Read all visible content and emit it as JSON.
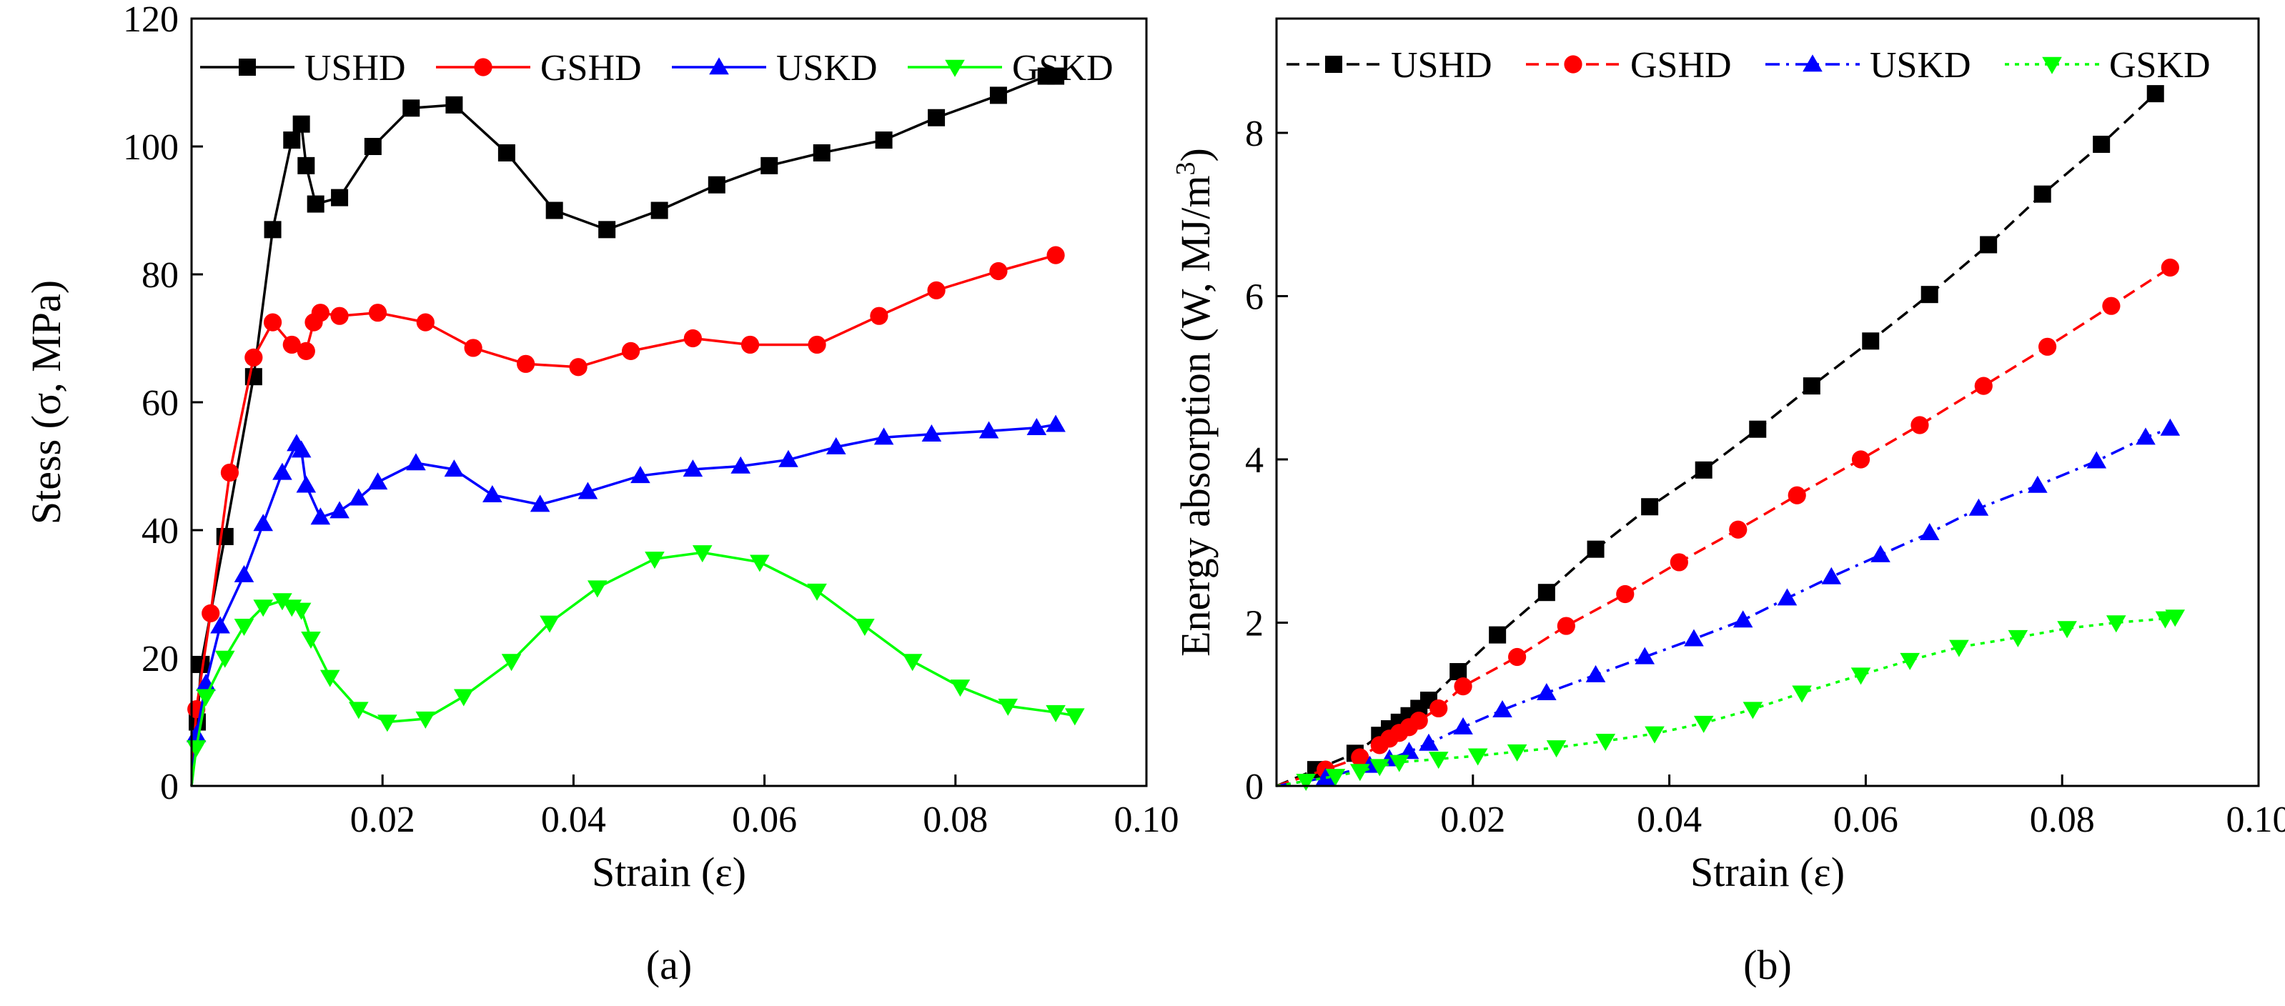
{
  "chart_data": [
    {
      "type": "line",
      "panel_label": "(a)",
      "xlabel": "Strain (ε)",
      "ylabel": "Stess (σ, MPa)",
      "xlim": [
        0,
        0.1
      ],
      "ylim": [
        0,
        120
      ],
      "xticks": [
        0.02,
        0.04,
        0.06,
        0.08,
        0.1
      ],
      "xtick_labels": [
        "0.02",
        "0.04",
        "0.06",
        "0.08",
        "0.10"
      ],
      "yticks": [
        0,
        20,
        40,
        60,
        80,
        100,
        120
      ],
      "ytick_labels": [
        "0",
        "20",
        "40",
        "60",
        "80",
        "100",
        "120"
      ],
      "legend_position": "top",
      "series": [
        {
          "name": "USHD",
          "color": "#000000",
          "marker": "square",
          "line": "solid",
          "x": [
            0,
            0.0006,
            0.001,
            0.0035,
            0.0065,
            0.0085,
            0.0105,
            0.0115,
            0.012,
            0.013,
            0.0155,
            0.019,
            0.023,
            0.0275,
            0.033,
            0.038,
            0.0435,
            0.049,
            0.055,
            0.0605,
            0.066,
            0.0725,
            0.078,
            0.0845,
            0.0895,
            0.0905
          ],
          "y": [
            0,
            10,
            19,
            39,
            64,
            87,
            101,
            103.5,
            97,
            91,
            92,
            100,
            106,
            106.5,
            99,
            90,
            87,
            90,
            94,
            97,
            99,
            101,
            104.5,
            108,
            111,
            111
          ]
        },
        {
          "name": "GSHD",
          "color": "#ff0000",
          "marker": "circle",
          "line": "solid",
          "x": [
            0,
            0.0005,
            0.002,
            0.004,
            0.0065,
            0.0085,
            0.0105,
            0.012,
            0.0128,
            0.0135,
            0.0155,
            0.0195,
            0.0245,
            0.0295,
            0.035,
            0.0405,
            0.046,
            0.0525,
            0.0585,
            0.0655,
            0.072,
            0.078,
            0.0845,
            0.0905
          ],
          "y": [
            0,
            12,
            27,
            49,
            67,
            72.5,
            69,
            68,
            72.5,
            74,
            73.5,
            74,
            72.5,
            68.5,
            66,
            65.5,
            68,
            70,
            69,
            69,
            73.5,
            77.5,
            80.5,
            83
          ]
        },
        {
          "name": "USKD",
          "color": "#0000ff",
          "marker": "triangle-up",
          "line": "solid",
          "x": [
            0,
            0.0005,
            0.0015,
            0.003,
            0.0055,
            0.0075,
            0.0095,
            0.011,
            0.0115,
            0.012,
            0.0135,
            0.0155,
            0.0175,
            0.0195,
            0.0235,
            0.0275,
            0.0315,
            0.0365,
            0.0415,
            0.047,
            0.0525,
            0.0575,
            0.0625,
            0.0675,
            0.0725,
            0.0775,
            0.0835,
            0.0885,
            0.0905
          ],
          "y": [
            0,
            8,
            16,
            25,
            33,
            41,
            49,
            53.5,
            52.5,
            47,
            42,
            43,
            45,
            47.5,
            50.5,
            49.5,
            45.5,
            44,
            46,
            48.5,
            49.5,
            50,
            51,
            53,
            54.5,
            55,
            55.5,
            56,
            56.5
          ]
        },
        {
          "name": "GSKD",
          "color": "#00ff00",
          "marker": "triangle-down",
          "line": "solid",
          "x": [
            0,
            0.0005,
            0.0015,
            0.0035,
            0.0055,
            0.0075,
            0.0095,
            0.0105,
            0.0115,
            0.0125,
            0.0145,
            0.0175,
            0.0205,
            0.0245,
            0.0285,
            0.0335,
            0.0375,
            0.0425,
            0.0485,
            0.0535,
            0.0595,
            0.0655,
            0.0705,
            0.0755,
            0.0805,
            0.0855,
            0.0905,
            0.0925
          ],
          "y": [
            0,
            6,
            14,
            20,
            25,
            28,
            29,
            28,
            27.5,
            23,
            17,
            12,
            10,
            10.5,
            14,
            19.5,
            25.5,
            31,
            35.5,
            36.5,
            35,
            30.5,
            25,
            19.5,
            15.5,
            12.5,
            11.5,
            11
          ]
        }
      ]
    },
    {
      "type": "line",
      "panel_label": "(b)",
      "xlabel": "Strain (ε)",
      "ylabel": "Energy absorption (W, MJ/m",
      "ylabel_sup": "3",
      "ylabel_tail": ")",
      "xlim": [
        0,
        0.1
      ],
      "ylim": [
        0,
        9.4
      ],
      "xticks": [
        0.02,
        0.04,
        0.06,
        0.08,
        0.1
      ],
      "xtick_labels": [
        "0.02",
        "0.04",
        "0.06",
        "0.08",
        "0.10"
      ],
      "yticks": [
        0,
        2,
        4,
        6,
        8
      ],
      "ytick_labels": [
        "0",
        "2",
        "4",
        "6",
        "8"
      ],
      "legend_position": "top",
      "series": [
        {
          "name": "USHD",
          "color": "#000000",
          "marker": "square",
          "line": "dashed",
          "x": [
            0,
            0.004,
            0.008,
            0.0105,
            0.0115,
            0.0125,
            0.0135,
            0.0145,
            0.0155,
            0.0185,
            0.0225,
            0.0275,
            0.0325,
            0.038,
            0.0435,
            0.049,
            0.0545,
            0.0605,
            0.0665,
            0.0725,
            0.078,
            0.084,
            0.0895
          ],
          "y": [
            0,
            0.2,
            0.4,
            0.62,
            0.7,
            0.78,
            0.86,
            0.95,
            1.05,
            1.4,
            1.85,
            2.37,
            2.9,
            3.42,
            3.87,
            4.37,
            4.9,
            5.45,
            6.02,
            6.63,
            7.25,
            7.86,
            8.48
          ]
        },
        {
          "name": "GSHD",
          "color": "#ff0000",
          "marker": "circle",
          "line": "dashed",
          "x": [
            0,
            0.005,
            0.0085,
            0.0105,
            0.0115,
            0.0125,
            0.0135,
            0.0145,
            0.0165,
            0.019,
            0.0245,
            0.0295,
            0.0355,
            0.041,
            0.047,
            0.053,
            0.0595,
            0.0655,
            0.072,
            0.0785,
            0.085,
            0.091
          ],
          "y": [
            0,
            0.2,
            0.35,
            0.5,
            0.58,
            0.65,
            0.72,
            0.8,
            0.95,
            1.22,
            1.58,
            1.96,
            2.35,
            2.74,
            3.14,
            3.56,
            4.0,
            4.42,
            4.9,
            5.38,
            5.88,
            6.35
          ]
        },
        {
          "name": "USKD",
          "color": "#0000ff",
          "marker": "triangle-up",
          "line": "dashdot",
          "x": [
            0,
            0.005,
            0.0095,
            0.0115,
            0.0135,
            0.0155,
            0.019,
            0.023,
            0.0275,
            0.0325,
            0.0375,
            0.0425,
            0.0475,
            0.052,
            0.0565,
            0.0615,
            0.0665,
            0.0715,
            0.0775,
            0.0835,
            0.0885,
            0.091
          ],
          "y": [
            0,
            0.1,
            0.25,
            0.33,
            0.42,
            0.52,
            0.72,
            0.93,
            1.14,
            1.36,
            1.58,
            1.8,
            2.03,
            2.3,
            2.56,
            2.83,
            3.1,
            3.4,
            3.68,
            3.98,
            4.27,
            4.38
          ]
        },
        {
          "name": "GSKD",
          "color": "#00ff00",
          "marker": "triangle-down",
          "line": "dotted",
          "x": [
            0,
            0.003,
            0.006,
            0.0085,
            0.0105,
            0.0125,
            0.0165,
            0.0205,
            0.0245,
            0.0285,
            0.0335,
            0.0385,
            0.0435,
            0.0485,
            0.0535,
            0.0595,
            0.0645,
            0.0695,
            0.0755,
            0.0805,
            0.0855,
            0.0905,
            0.0915
          ],
          "y": [
            0,
            0.06,
            0.12,
            0.18,
            0.24,
            0.29,
            0.33,
            0.37,
            0.42,
            0.47,
            0.55,
            0.64,
            0.77,
            0.94,
            1.14,
            1.36,
            1.54,
            1.7,
            1.82,
            1.93,
            2.0,
            2.05,
            2.07
          ]
        }
      ]
    }
  ]
}
